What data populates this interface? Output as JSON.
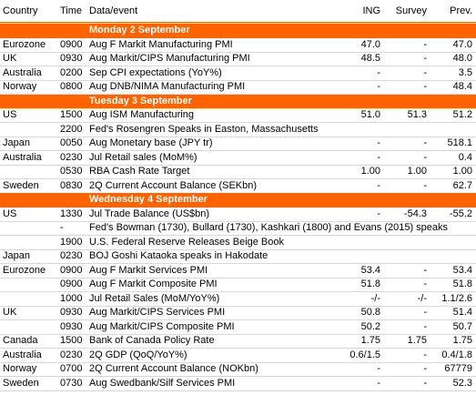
{
  "header": {
    "country": "Country",
    "time": "Time",
    "event": "Data/event",
    "ing": "ING",
    "survey": "Survey",
    "prev": "Prev."
  },
  "sections": [
    {
      "title": "Monday 2 September",
      "rows": [
        {
          "country": "Eurozone",
          "time": "0900",
          "event": "Aug F Markit Manufacturing PMI",
          "ing": "47.0",
          "survey": "-",
          "prev": "47.0"
        },
        {
          "country": "UK",
          "time": "0930",
          "event": "Aug Markit/CIPS Manufacturing PMI",
          "ing": "48.5",
          "survey": "-",
          "prev": "48.0"
        },
        {
          "country": "Australia",
          "time": "0200",
          "event": "Sep CPI expectations (YoY%)",
          "ing": "-",
          "survey": "-",
          "prev": "3.5"
        },
        {
          "country": "Norway",
          "time": "0800",
          "event": "Aug DNB/NIMA Manufacturing PMI",
          "ing": "-",
          "survey": "-",
          "prev": "48.4"
        }
      ]
    },
    {
      "title": "Tuesday 3 September",
      "rows": [
        {
          "country": "US",
          "time": "1500",
          "event": "Aug ISM Manufacturing",
          "ing": "51.0",
          "survey": "51.3",
          "prev": "51.2"
        },
        {
          "time": "2200",
          "event": "Fed's Rosengren Speaks in Easton, Massachusetts"
        },
        {
          "country": "Japan",
          "time": "0050",
          "event": "Aug Monetary base (JPY tr)",
          "ing": "-",
          "survey": "-",
          "prev": "518.1"
        },
        {
          "country": "Australia",
          "time": "0230",
          "event": "Jul Retail sales (MoM%)",
          "ing": "-",
          "survey": "-",
          "prev": "0.4"
        },
        {
          "time": "0530",
          "event": "RBA Cash Rate Target",
          "ing": "1.00",
          "survey": "1.00",
          "prev": "1.00"
        },
        {
          "country": "Sweden",
          "time": "0830",
          "event": "2Q Current Account Balance (SEKbn)",
          "ing": "-",
          "survey": "-",
          "prev": "62.7"
        }
      ]
    },
    {
      "title": "Wednesday 4 September",
      "rows": [
        {
          "country": "US",
          "time": "1330",
          "event": "Jul Trade Balance (US$bn)",
          "ing": "-",
          "survey": "-54.3",
          "prev": "-55.2"
        },
        {
          "time": "-",
          "event": "Fed's Bowman (1730), Bullard (1730), Kashkari (1800) and Evans (2015) speaks"
        },
        {
          "time": "1900",
          "event": "U.S. Federal Reserve Releases Beige Book"
        },
        {
          "country": "Japan",
          "time": "0230",
          "event": "BOJ Goshi Kataoka speaks in Hakodate"
        },
        {
          "country": "Eurozone",
          "time": "0900",
          "event": "Aug F Markit Services PMI",
          "ing": "53.4",
          "survey": "-",
          "prev": "53.4"
        },
        {
          "time": "0900",
          "event": "Aug F Markit Composite PMI",
          "ing": "51.8",
          "survey": "-",
          "prev": "51.8"
        },
        {
          "time": "1000",
          "event": "Jul Retail Sales (MoM/YoY%)",
          "ing": "-/-",
          "survey": "-/-",
          "prev": "1.1/2.6"
        },
        {
          "country": "UK",
          "time": "0930",
          "event": "Aug Markit/CIPS Services PMI",
          "ing": "50.8",
          "survey": "-",
          "prev": "51.4"
        },
        {
          "time": "0930",
          "event": "Aug Markit/CIPS Composite PMI",
          "ing": "50.2",
          "survey": "-",
          "prev": "50.7"
        },
        {
          "country": "Canada",
          "time": "1500",
          "event": "Bank of Canada Policy Rate",
          "ing": "1.75",
          "survey": "1.75",
          "prev": "1.75"
        },
        {
          "country": "Australia",
          "time": "0230",
          "event": "2Q GDP (QoQ/YoY%)",
          "ing": "0.6/1.5",
          "survey": "-",
          "prev": "0.4/1.8"
        },
        {
          "country": "Norway",
          "time": "0700",
          "event": "2Q Current Account Balance (NOKbn)",
          "ing": "-",
          "survey": "-",
          "prev": "67779"
        },
        {
          "country": "Sweden",
          "time": "0730",
          "event": "Aug Swedbank/Silf Services PMI",
          "ing": "-",
          "survey": "-",
          "prev": "52.3"
        }
      ]
    }
  ]
}
